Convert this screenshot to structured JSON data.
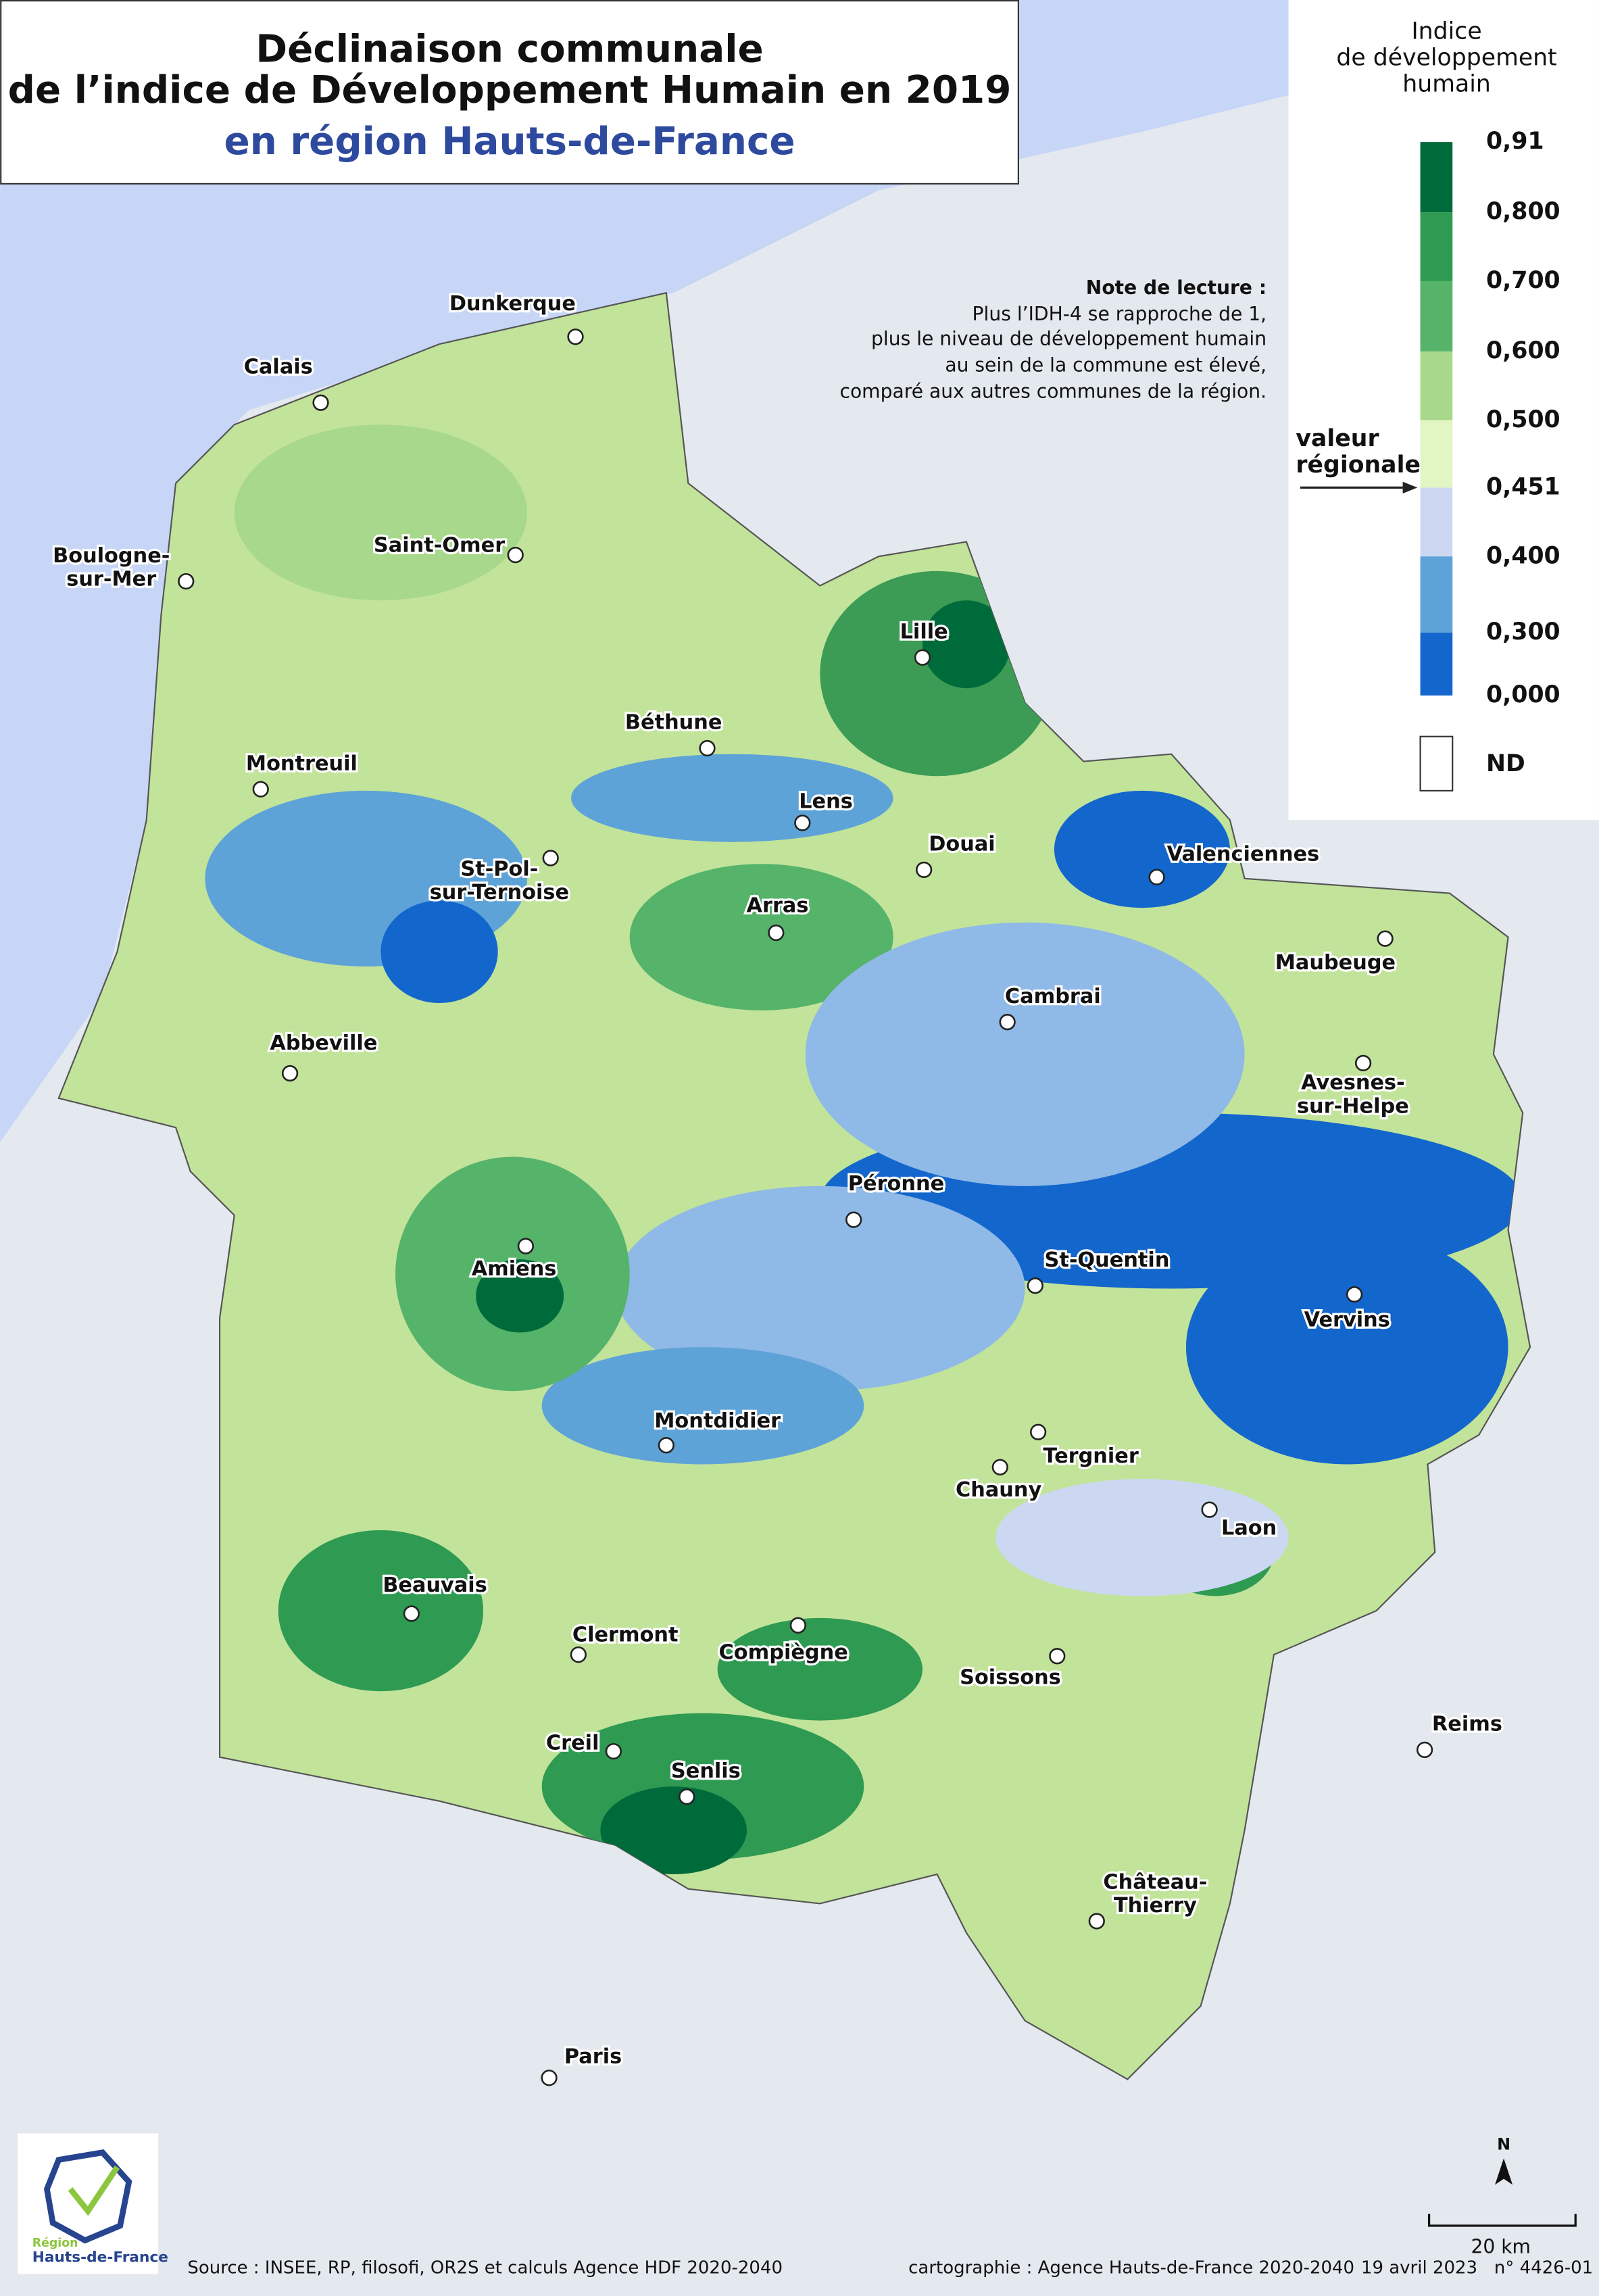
{
  "header": {
    "title_lines": [
      "Déclinaison communale",
      "de l’indice de Développement Humain en 2019"
    ],
    "subtitle": "en région Hauts-de-France"
  },
  "legend": {
    "title_lines": [
      "Indice",
      "de développement",
      "humain"
    ],
    "breaks": [
      "0,91",
      "0,800",
      "0,700",
      "0,600",
      "0,500",
      "0,451",
      "0,400",
      "0,300",
      "0,000"
    ],
    "colors": [
      "#006b3a",
      "#2e9a52",
      "#56b36a",
      "#a8d88b",
      "#e2f6c4",
      "#ccd8f2",
      "#5ea3d8",
      "#1366cc"
    ],
    "nd_label": "ND",
    "nd_color": "#ffffff",
    "regional_label_lines": [
      "valeur",
      "régionale"
    ]
  },
  "note": {
    "title": "Note de lecture :",
    "lines": [
      "Plus l’IDH-4 se rapproche de 1,",
      "plus le niveau de développement humain",
      "au sein de la commune est élevé,",
      "comparé aux autres communes de la région."
    ]
  },
  "cities": [
    {
      "label": [
        "Dunkerque"
      ]
    },
    {
      "label": [
        "Calais"
      ]
    },
    {
      "label": [
        "Boulogne-",
        "sur-Mer"
      ]
    },
    {
      "label": [
        "Saint-Omer"
      ]
    },
    {
      "label": [
        "Lille"
      ]
    },
    {
      "label": [
        "Béthune"
      ]
    },
    {
      "label": [
        "Montreuil"
      ]
    },
    {
      "label": [
        "Lens"
      ]
    },
    {
      "label": [
        "Douai"
      ]
    },
    {
      "label": [
        "Valenciennes"
      ]
    },
    {
      "label": [
        "St-Pol-",
        "sur-Ternoise"
      ]
    },
    {
      "label": [
        "Arras"
      ]
    },
    {
      "label": [
        "Maubeuge"
      ]
    },
    {
      "label": [
        "Cambrai"
      ]
    },
    {
      "label": [
        "Abbeville"
      ]
    },
    {
      "label": [
        "Avesnes-",
        "sur-Helpe"
      ]
    },
    {
      "label": [
        "Péronne"
      ]
    },
    {
      "label": [
        "St-Quentin"
      ]
    },
    {
      "label": [
        "Amiens"
      ]
    },
    {
      "label": [
        "Vervins"
      ]
    },
    {
      "label": [
        "Montdidier"
      ]
    },
    {
      "label": [
        "Tergnier"
      ]
    },
    {
      "label": [
        "Chauny"
      ]
    },
    {
      "label": [
        "Laon"
      ]
    },
    {
      "label": [
        "Beauvais"
      ]
    },
    {
      "label": [
        "Clermont"
      ]
    },
    {
      "label": [
        "Compiègne"
      ]
    },
    {
      "label": [
        "Soissons"
      ]
    },
    {
      "label": [
        "Reims"
      ]
    },
    {
      "label": [
        "Creil"
      ]
    },
    {
      "label": [
        "Senlis"
      ]
    },
    {
      "label": [
        "Château-",
        "Thierry"
      ]
    },
    {
      "label": [
        "Paris"
      ]
    }
  ],
  "logo": {
    "lines": [
      "Région",
      "Hauts-de-France"
    ]
  },
  "footer": {
    "source": "Source : INSEE, RP, filosofi, OR2S et calculs Agence HDF 2020-2040",
    "credit": "cartographie : Agence Hauts-de-France 2020-2040",
    "date": "19 avril 2023",
    "ref": "n° 4426-01"
  },
  "scale": {
    "label": "20 km",
    "north": "N"
  }
}
